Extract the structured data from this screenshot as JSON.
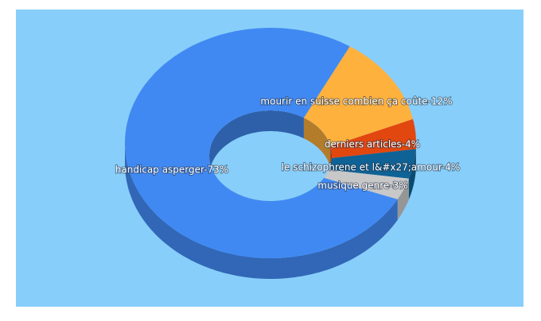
{
  "chart_data": {
    "type": "donut3d",
    "values": [
      12,
      4,
      4,
      3,
      73
    ],
    "value_labels": [
      "mourir en suisse combien ça coûte-12%",
      "derniers articles-4%",
      "le schizophrene et l&#x27;amour-4%",
      "musique genre-3%",
      "handicap asperger-73%"
    ],
    "colors": [
      "#ffb13d",
      "#e2470f",
      "#0f6295",
      "#c8c8c8",
      "#4189f2"
    ]
  }
}
